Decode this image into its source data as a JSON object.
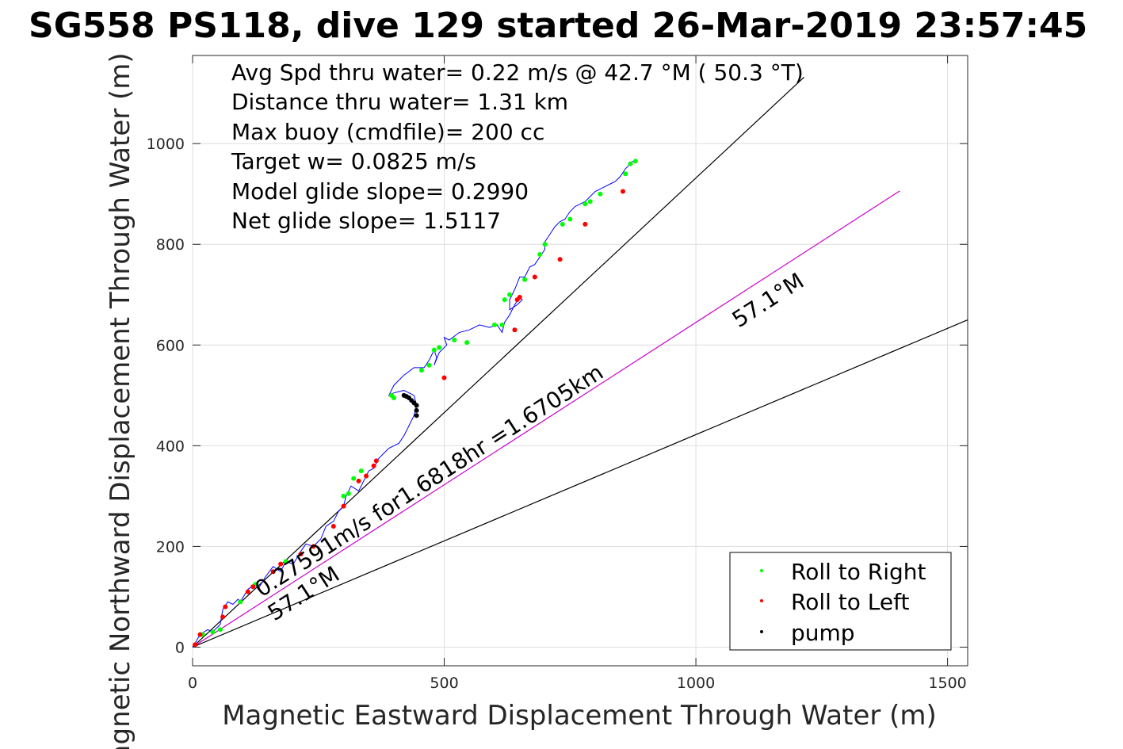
{
  "chart_data": {
    "type": "line",
    "title": "SG558 PS118, dive 129 started 26-Mar-2019 23:57:45",
    "xlabel": "Magnetic Eastward Displacement Through Water (m)",
    "ylabel": "Magnetic Northward Displacement Through Water (m)",
    "xlim": [
      0,
      1540
    ],
    "ylim": [
      -37,
      1175
    ],
    "xticks": [
      0,
      500,
      1000,
      1500
    ],
    "yticks": [
      0,
      200,
      400,
      600,
      800,
      1000
    ],
    "xticklabels": [
      "0",
      "500",
      "1000",
      "1500"
    ],
    "yticklabels": [
      "0",
      "200",
      "400",
      "600",
      "800",
      "1000"
    ],
    "grid": true,
    "legend_position": "bottom-right",
    "annotations": [
      "Avg Spd thru water=  0.22 m/s @  42.7 °M ( 50.3 °T)",
      "Distance thru water=  1.31 km",
      "Max buoy (cmdfile)= 200 cc",
      "Target w= 0.0825 m/s",
      "Model glide slope= 0.2990",
      "Net glide slope= 1.5117"
    ],
    "line_labels": {
      "speed": "0.27591m/s for1.6818hr =1.6705km",
      "heading_upper": "57.1°M",
      "heading_lower": "57.1°M"
    },
    "reference_lines": [
      {
        "name": "bound-upper",
        "color": "#000000",
        "x": [
          0,
          1215
        ],
        "y": [
          0,
          1132
        ]
      },
      {
        "name": "heading",
        "color": "#cc00cc",
        "x": [
          0,
          1405
        ],
        "y": [
          0,
          906
        ]
      },
      {
        "name": "bound-lower",
        "color": "#000000",
        "x": [
          0,
          1540
        ],
        "y": [
          0,
          650
        ]
      }
    ],
    "track": {
      "color": "#0000ff",
      "x": [
        0,
        15,
        30,
        40,
        55,
        60,
        70,
        80,
        90,
        95,
        110,
        125,
        130,
        145,
        160,
        175,
        185,
        200,
        215,
        225,
        240,
        255,
        265,
        280,
        290,
        300,
        305,
        315,
        330,
        340,
        350,
        360,
        370,
        375,
        390,
        400,
        410,
        420,
        430,
        440,
        445,
        440,
        420,
        400,
        390,
        400,
        420,
        440,
        460,
        470,
        480,
        485,
        480,
        490,
        505,
        500,
        510,
        530,
        550,
        570,
        590,
        605,
        615,
        620,
        630,
        640,
        650,
        655,
        645,
        630,
        630,
        640,
        650,
        660,
        670,
        680,
        690,
        700,
        700,
        710,
        720,
        730,
        740,
        750,
        760,
        770,
        780,
        790,
        800,
        810,
        820,
        830,
        840,
        850,
        860,
        865,
        870,
        875,
        880
      ],
      "y": [
        0,
        25,
        35,
        30,
        45,
        75,
        90,
        85,
        95,
        90,
        115,
        125,
        115,
        140,
        160,
        150,
        170,
        165,
        190,
        205,
        200,
        215,
        240,
        250,
        270,
        280,
        300,
        320,
        310,
        330,
        350,
        355,
        375,
        380,
        395,
        400,
        405,
        420,
        440,
        460,
        480,
        500,
        510,
        505,
        500,
        520,
        540,
        555,
        555,
        570,
        590,
        575,
        560,
        585,
        600,
        615,
        610,
        625,
        630,
        640,
        635,
        640,
        625,
        645,
        660,
        680,
        695,
        690,
        680,
        670,
        690,
        710,
        735,
        735,
        755,
        760,
        775,
        790,
        805,
        820,
        835,
        845,
        850,
        865,
        875,
        880,
        885,
        895,
        905,
        910,
        915,
        920,
        925,
        935,
        950,
        955,
        960,
        965,
        965
      ]
    },
    "roll_right_points": {
      "name": "Roll to Right",
      "color": "#00ff00",
      "x": [
        20,
        40,
        55,
        95,
        125,
        185,
        300,
        310,
        320,
        335,
        395,
        400,
        455,
        470,
        480,
        490,
        520,
        545,
        600,
        615,
        620,
        630,
        660,
        690,
        700,
        735,
        750,
        780,
        790,
        810,
        860,
        870,
        880
      ],
      "y": [
        25,
        30,
        35,
        90,
        125,
        170,
        300,
        305,
        335,
        350,
        500,
        495,
        550,
        560,
        590,
        595,
        610,
        605,
        640,
        640,
        690,
        700,
        730,
        780,
        800,
        840,
        850,
        880,
        885,
        900,
        940,
        960,
        965
      ]
    },
    "roll_left_points": {
      "name": "Roll to Left",
      "color": "#ff0000",
      "x": [
        5,
        15,
        60,
        65,
        110,
        120,
        160,
        175,
        215,
        240,
        280,
        300,
        330,
        345,
        360,
        365,
        500,
        640,
        645,
        650,
        680,
        730,
        780,
        855
      ],
      "y": [
        5,
        25,
        60,
        80,
        110,
        120,
        150,
        165,
        185,
        200,
        240,
        280,
        330,
        340,
        360,
        370,
        535,
        630,
        690,
        695,
        735,
        770,
        840,
        905
      ]
    },
    "pump_points": {
      "name": "pump",
      "color": "#000000",
      "x": [
        420,
        425,
        430,
        435,
        440,
        445,
        445,
        445
      ],
      "y": [
        500,
        498,
        495,
        490,
        485,
        480,
        470,
        460
      ]
    }
  },
  "legend": {
    "items": [
      {
        "label": "Roll to Right",
        "color": "#00ff00"
      },
      {
        "label": "Roll to Left",
        "color": "#ff0000"
      },
      {
        "label": "pump",
        "color": "#000000"
      }
    ]
  }
}
